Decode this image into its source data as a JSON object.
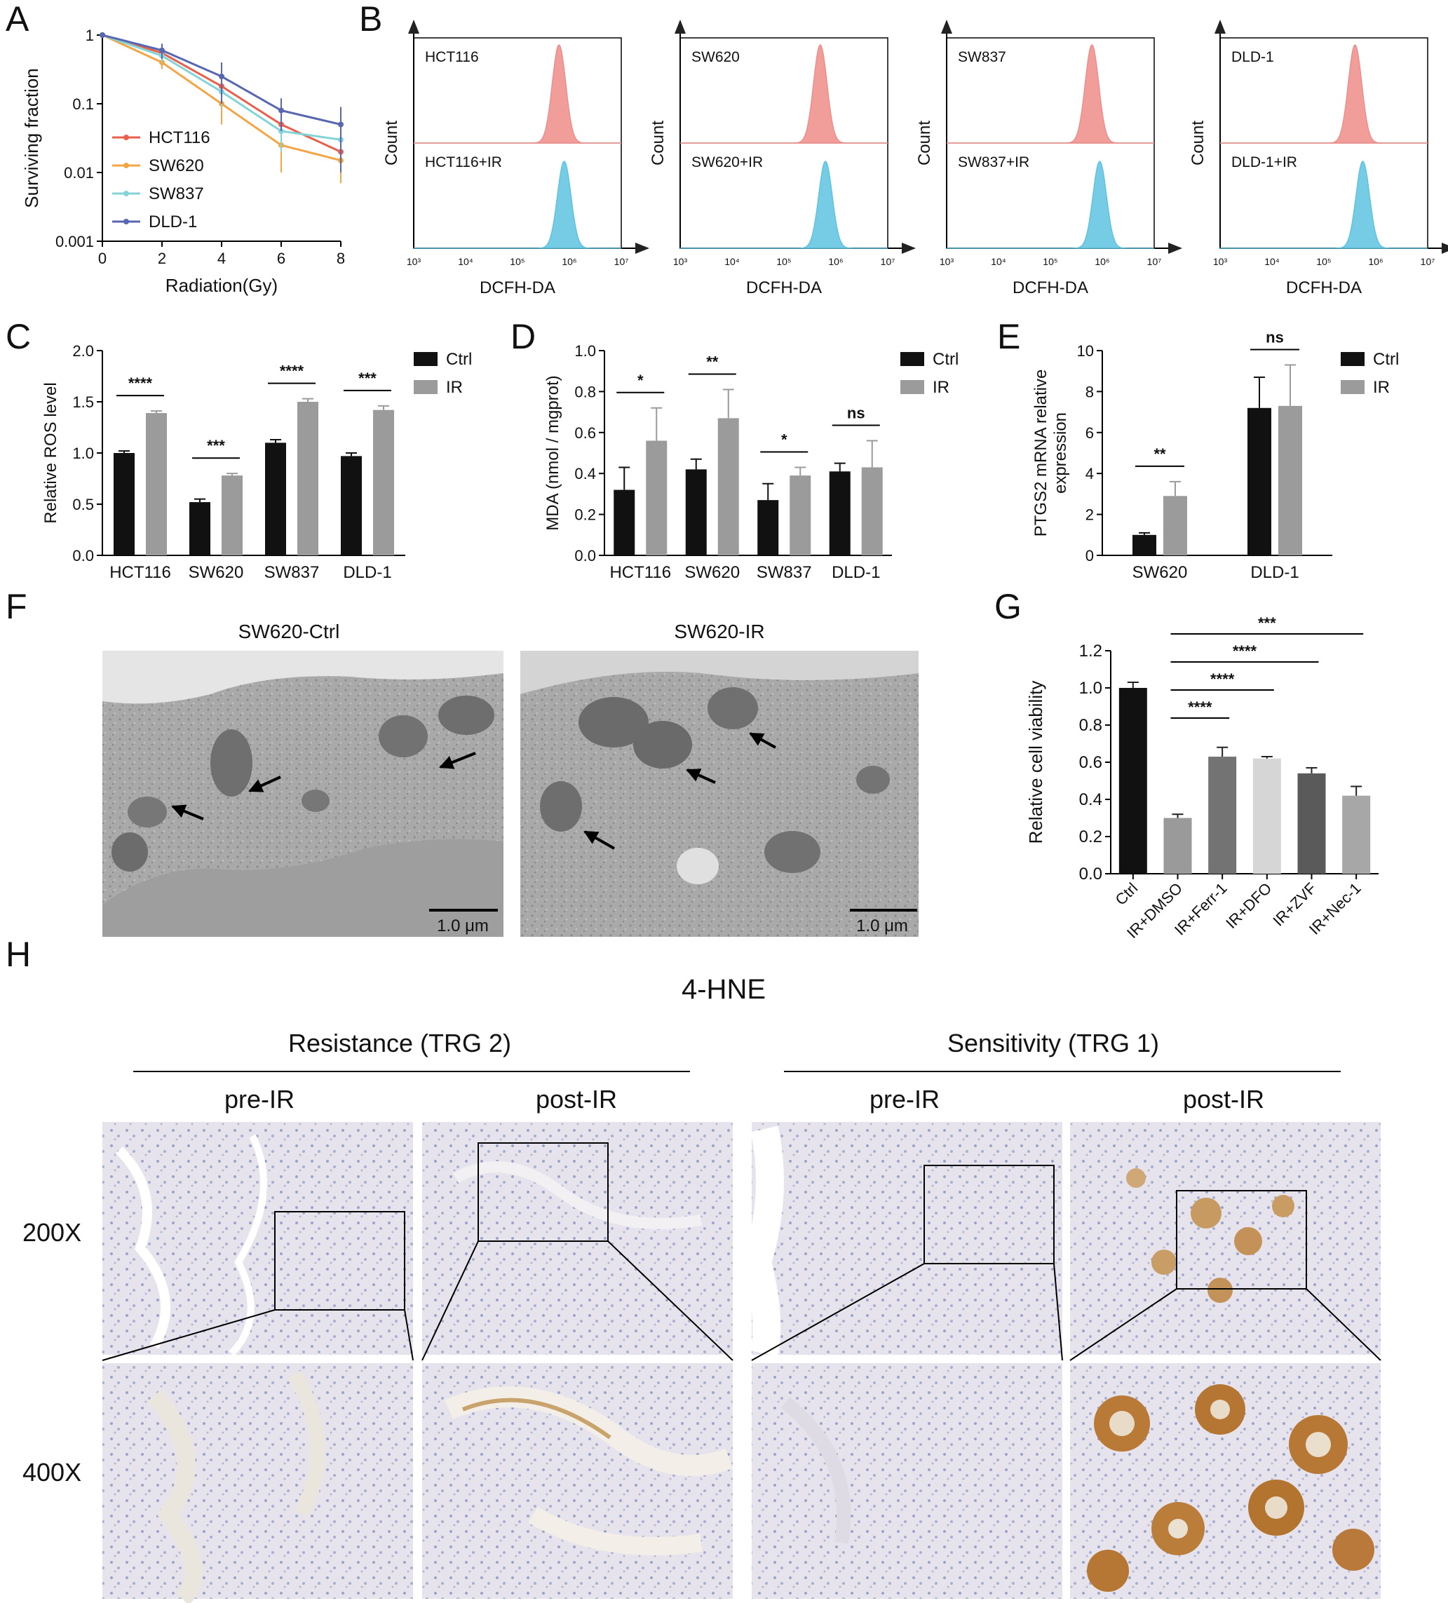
{
  "panel_labels": [
    "A",
    "B",
    "C",
    "D",
    "E",
    "F",
    "G",
    "H"
  ],
  "colors": {
    "hct116": "#e8604c",
    "sw620": "#f4a545",
    "sw837": "#84d3d6",
    "dld1": "#5867b0",
    "ctrl_bar": "#111111",
    "ir_bar": "#9b9b9b",
    "hist_top": "#ee8d8a",
    "hist_bottom": "#5fc3e0",
    "g_bars": [
      "#111111",
      "#9a9a9a",
      "#737373",
      "#d6d6d6",
      "#5a5a5a",
      "#a7a7a7"
    ]
  },
  "chart_data": [
    {
      "id": "A",
      "type": "line",
      "xlabel": "Radiation(Gy)",
      "ylabel": "Surviving fraction",
      "x_ticks": [
        "0",
        "2",
        "4",
        "6",
        "8"
      ],
      "y_ticks": [
        "0.001",
        "0.01",
        "0.1",
        "1"
      ],
      "ylim": [
        0.001,
        1
      ],
      "xlim": [
        0,
        8
      ],
      "yscale": "log",
      "legend": "left",
      "series": [
        {
          "name": "HCT116",
          "x": [
            0,
            2,
            4,
            6,
            8
          ],
          "y": [
            1,
            0.55,
            0.18,
            0.05,
            0.02
          ],
          "err": [
            0,
            0.1,
            0.06,
            0.03,
            0.01
          ],
          "color_key": "hct116"
        },
        {
          "name": "SW620",
          "x": [
            0,
            2,
            4,
            6,
            8
          ],
          "y": [
            1,
            0.4,
            0.1,
            0.025,
            0.015
          ],
          "err": [
            0,
            0.08,
            0.05,
            0.015,
            0.008
          ],
          "color_key": "sw620"
        },
        {
          "name": "SW837",
          "x": [
            0,
            2,
            4,
            6,
            8
          ],
          "y": [
            1,
            0.5,
            0.15,
            0.04,
            0.03
          ],
          "err": [
            0,
            0.1,
            0.06,
            0.02,
            0.02
          ],
          "color_key": "sw837"
        },
        {
          "name": "DLD-1",
          "x": [
            0,
            2,
            4,
            6,
            8
          ],
          "y": [
            1,
            0.6,
            0.25,
            0.08,
            0.05
          ],
          "err": [
            0,
            0.15,
            0.15,
            0.04,
            0.04
          ],
          "color_key": "dld1"
        }
      ]
    },
    {
      "id": "B",
      "type": "area",
      "xlabel": "DCFH-DA",
      "ylabel": "Count",
      "x_ticks": [
        "10³",
        "10⁴",
        "10⁵",
        "10⁶",
        "10⁷"
      ],
      "panels": [
        {
          "top": "HCT116",
          "bottom": "HCT116+IR",
          "peak_top": 5.8,
          "peak_bottom": 5.9
        },
        {
          "top": "SW620",
          "bottom": "SW620+IR",
          "peak_top": 5.7,
          "peak_bottom": 5.8
        },
        {
          "top": "SW837",
          "bottom": "SW837+IR",
          "peak_top": 5.8,
          "peak_bottom": 5.95
        },
        {
          "top": "DLD-1",
          "bottom": "DLD-1+IR",
          "peak_top": 5.6,
          "peak_bottom": 5.75
        }
      ]
    },
    {
      "id": "C",
      "type": "bar",
      "ylabel": "Relative ROS level",
      "categories": [
        "HCT116",
        "SW620",
        "SW837",
        "DLD-1"
      ],
      "y_ticks": [
        "0.0",
        "0.5",
        "1.0",
        "1.5",
        "2.0"
      ],
      "ylim": [
        0,
        2
      ],
      "series": [
        {
          "name": "Ctrl",
          "values": [
            1.0,
            0.52,
            1.1,
            0.97
          ],
          "err": [
            0.02,
            0.03,
            0.03,
            0.03
          ]
        },
        {
          "name": "IR",
          "values": [
            1.39,
            0.78,
            1.5,
            1.42
          ],
          "err": [
            0.02,
            0.02,
            0.03,
            0.04
          ]
        }
      ],
      "significance": [
        "****",
        "***",
        "****",
        "***"
      ],
      "legend": "top-right"
    },
    {
      "id": "D",
      "type": "bar",
      "ylabel": "MDA (nmol / mgprot)",
      "categories": [
        "HCT116",
        "SW620",
        "SW837",
        "DLD-1"
      ],
      "y_ticks": [
        "0.0",
        "0.2",
        "0.4",
        "0.6",
        "0.8",
        "1.0"
      ],
      "ylim": [
        0,
        1
      ],
      "series": [
        {
          "name": "Ctrl",
          "values": [
            0.32,
            0.42,
            0.27,
            0.41
          ],
          "err": [
            0.11,
            0.05,
            0.08,
            0.04
          ]
        },
        {
          "name": "IR",
          "values": [
            0.56,
            0.67,
            0.39,
            0.43
          ],
          "err": [
            0.16,
            0.14,
            0.04,
            0.13
          ]
        }
      ],
      "significance": [
        "*",
        "**",
        "*",
        "ns"
      ],
      "legend": "top-right"
    },
    {
      "id": "E",
      "type": "bar",
      "ylabel": "PTGS2 mRNA relative expression",
      "categories": [
        "SW620",
        "DLD-1"
      ],
      "y_ticks": [
        "0",
        "2",
        "4",
        "6",
        "8",
        "10"
      ],
      "ylim": [
        0,
        10
      ],
      "series": [
        {
          "name": "Ctrl",
          "values": [
            1.0,
            7.2
          ],
          "err": [
            0.1,
            1.5
          ]
        },
        {
          "name": "IR",
          "values": [
            2.9,
            7.3
          ],
          "err": [
            0.7,
            2.0
          ]
        }
      ],
      "significance": [
        "**",
        "ns"
      ],
      "legend": "top-right"
    },
    {
      "id": "G",
      "type": "bar",
      "ylabel": "Relative cell viability",
      "categories": [
        "Ctrl",
        "IR+DMSO",
        "IR+Ferr-1",
        "IR+DFO",
        "IR+ZVF",
        "IR+Nec-1"
      ],
      "y_ticks": [
        "0.0",
        "0.2",
        "0.4",
        "0.6",
        "0.8",
        "1.0",
        "1.2"
      ],
      "ylim": [
        0,
        1.2
      ],
      "values": [
        1.0,
        0.3,
        0.63,
        0.62,
        0.54,
        0.42
      ],
      "err": [
        0.03,
        0.02,
        0.05,
        0.01,
        0.03,
        0.05
      ],
      "comparisons": [
        {
          "to": "IR+Ferr-1",
          "label": "****"
        },
        {
          "to": "IR+DFO",
          "label": "****"
        },
        {
          "to": "IR+ZVF",
          "label": "****"
        },
        {
          "to": "IR+Nec-1",
          "label": "***"
        }
      ]
    }
  ],
  "panel_f": {
    "titles": [
      "SW620-Ctrl",
      "SW620-IR"
    ],
    "scale_bar": "1.0 μm"
  },
  "panel_h": {
    "title": "4-HNE",
    "groups": [
      "Resistance (TRG 2)",
      "Sensitivity (TRG 1)"
    ],
    "columns": [
      "pre-IR",
      "post-IR",
      "pre-IR",
      "post-IR"
    ],
    "rows": [
      "200X",
      "400X"
    ]
  }
}
